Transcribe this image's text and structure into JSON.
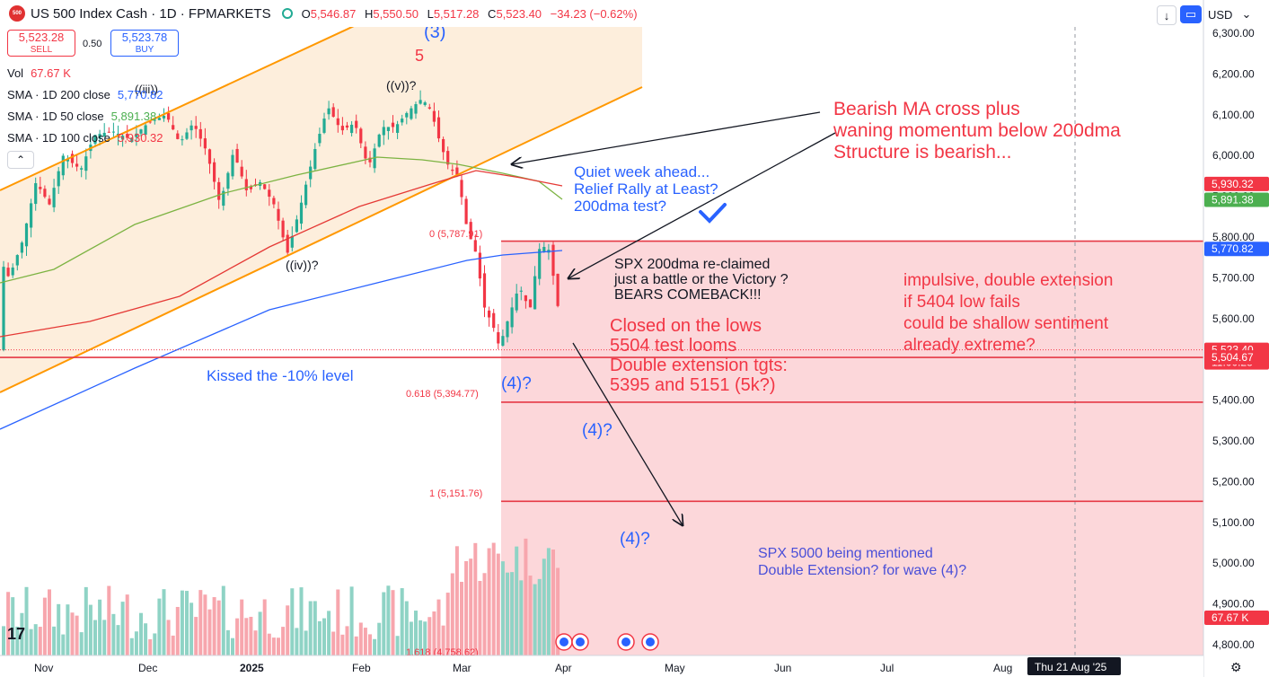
{
  "header": {
    "symbol_logo": "500",
    "title": "US 500 Index Cash · 1D · FPMARKETS",
    "ohlc": [
      {
        "k": "O",
        "v": "5,546.87"
      },
      {
        "k": "H",
        "v": "5,550.50"
      },
      {
        "k": "L",
        "v": "5,517.28"
      },
      {
        "k": "C",
        "v": "5,523.40"
      },
      {
        "k": "",
        "v": "−34.23 (−0.62%)"
      }
    ],
    "currency": "USD",
    "sell": {
      "price": "5,523.28",
      "label": "SELL"
    },
    "buy": {
      "price": "5,523.78",
      "label": "BUY"
    },
    "spread": "0.50"
  },
  "indicators": {
    "vol": {
      "label": "Vol",
      "value": "67.67 K"
    },
    "sma200": {
      "label": "SMA · 1D 200 close",
      "value": "5,770.82"
    },
    "sma50": {
      "label": "SMA · 1D 50 close",
      "value": "5,891.38"
    },
    "sma100": {
      "label": "SMA · 1D 100 close",
      "value": "5,930.32"
    }
  },
  "colors": {
    "up": "#22ab94",
    "down": "#f23645",
    "sma200": "#2962ff",
    "sma50": "#7cb342",
    "sma100": "#e53935",
    "channel": "#ff9800",
    "zone": "#fbd0d3",
    "annot_red": "#f23645",
    "annot_blue": "#2962ff"
  },
  "chart_data": {
    "type": "candlestick",
    "x_axis": {
      "ticks": [
        "Nov",
        "Dec",
        "2025",
        "Feb",
        "Mar",
        "Apr",
        "May",
        "Jun",
        "Jul",
        "Aug"
      ],
      "crosshair_label": "Thu 21 Aug '25"
    },
    "y_axis": {
      "ticks": [
        "6,300.00",
        "6,200.00",
        "6,100.00",
        "6,000.00",
        "5,900.00",
        "5,800.00",
        "5,700.00",
        "5,600.00",
        "5,500.00",
        "5,400.00",
        "5,300.00",
        "5,200.00",
        "5,100.00",
        "5,000.00",
        "4,900.00",
        "4,800.00"
      ],
      "ylim": [
        4775,
        6330
      ]
    },
    "price_labels": [
      {
        "value": "5,930.32",
        "color": "#f23645"
      },
      {
        "value": "5,891.38",
        "color": "#4caf50"
      },
      {
        "value": "5,770.82",
        "color": "#2962ff"
      },
      {
        "value": "5,523.40",
        "sub": "11:00:28",
        "color": "#f23645"
      },
      {
        "value": "5,504.67",
        "color": "#f23645"
      },
      {
        "value": "67.67 K",
        "color": "#f23645"
      }
    ],
    "horizontal_levels": [
      5790,
      5504.67,
      5394.77,
      5151.76
    ],
    "fib_labels": [
      "0 (5,787.91)",
      "0.618 (5,394.77)",
      "1 (5,151.76)",
      "1.618 (4,758.62)"
    ],
    "wave_labels": [
      "(3)",
      "5",
      "((v))?",
      "((iii))",
      "((iv))?",
      "(4)?",
      "(4)?",
      "(4)?"
    ],
    "annotations": [
      {
        "text": [
          "Bearish MA cross plus",
          "waning momentum below 200dma",
          "Structure is bearish..."
        ],
        "color": "red"
      },
      {
        "text": [
          "Quiet week ahead...",
          "Relief Rally at Least?",
          "200dma test?"
        ],
        "color": "blue"
      },
      {
        "text": [
          "SPX 200dma re-claimed",
          "just a battle or the Victory ?",
          "BEARS COMEBACK!!!"
        ],
        "color": "black"
      },
      {
        "text": [
          "impulsive, double extension",
          "if 5404 low fails",
          "could be shallow sentiment",
          "already extreme?"
        ],
        "color": "red"
      },
      {
        "text": [
          "Closed on the lows",
          "5504 test looms",
          "Double extension tgts:",
          "5395 and 5151 (5k?)"
        ],
        "color": "red"
      },
      {
        "text": [
          "Kissed the -10% level"
        ],
        "color": "blue"
      },
      {
        "text": [
          "SPX 5000 being mentioned",
          "Double Extension? for wave (4)?"
        ],
        "color": "purple"
      }
    ]
  }
}
